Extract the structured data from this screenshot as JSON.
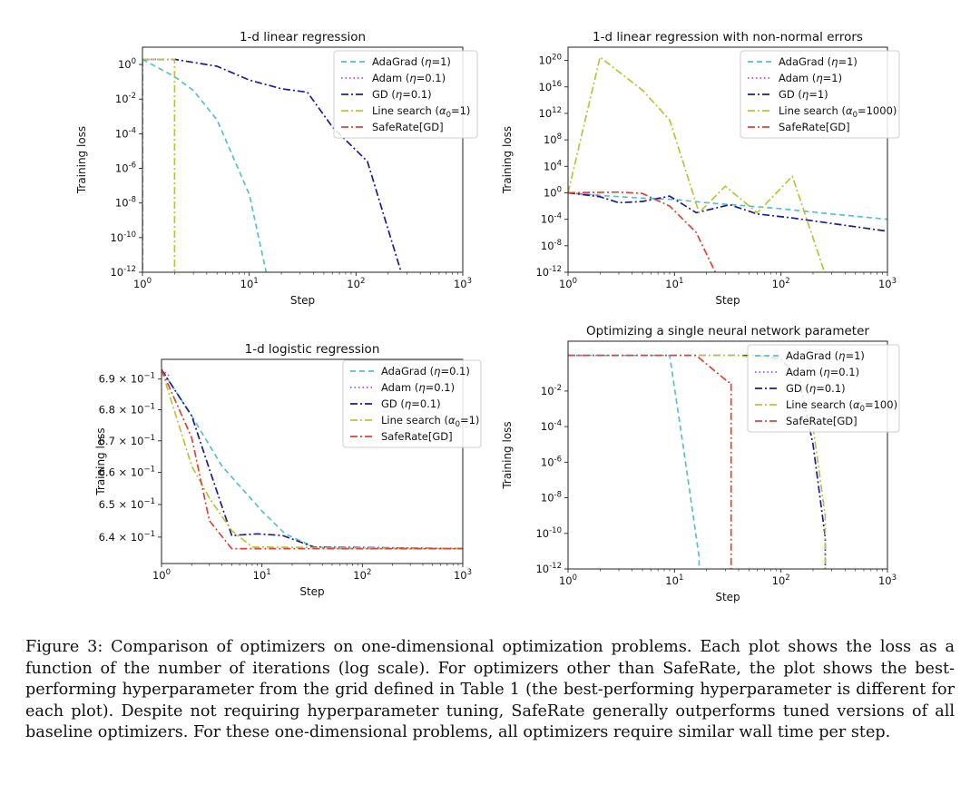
{
  "figure": {
    "caption": "Figure 3: Comparison of optimizers on one-dimensional optimization problems. Each plot shows the loss as a function of the number of iterations (log scale). For optimizers other than SafeRate, the plot shows the best-performing hyperparameter from the grid defined in Table 1 (the best-performing hyperparameter is different for each plot). Despite not requiring hyperparameter tuning, SafeRate generally outperforms tuned versions of all baseline optimizers. For these one-dimensional problems, all optimizers require similar wall time per step."
  },
  "colors": {
    "adagrad": "#5bbfc9",
    "adam": "#c845c8",
    "gd": "#1c1c8f",
    "line_search": "#b9c43c",
    "saferate": "#d9453a"
  },
  "chart_data": [
    {
      "type": "line",
      "title": "1-d linear regression",
      "xlabel": "Step",
      "ylabel": "Training loss",
      "xscale": "log",
      "yscale": "log",
      "xlim": [
        1,
        1000
      ],
      "ylim_exp": [
        -12,
        1
      ],
      "x_ticks": [
        {
          "label": "10",
          "exp": "0"
        },
        {
          "label": "10",
          "exp": "1"
        },
        {
          "label": "10",
          "exp": "2"
        },
        {
          "label": "10",
          "exp": "3"
        }
      ],
      "y_ticks": [
        {
          "label": "10",
          "exp": "0"
        },
        {
          "label": "10",
          "exp": "-2"
        },
        {
          "label": "10",
          "exp": "-4"
        },
        {
          "label": "10",
          "exp": "-6"
        },
        {
          "label": "10",
          "exp": "-8"
        },
        {
          "label": "10",
          "exp": "-10"
        },
        {
          "label": "10",
          "exp": "-12"
        }
      ],
      "legend_position": "top-right",
      "series": [
        {
          "key": "adagrad",
          "name": "AdaGrad (η=1)",
          "label_main": "AdaGrad (",
          "label_sym": "η",
          "label_rest": "=1)",
          "label_sub": "",
          "style": "dashed",
          "x": [
            1,
            2,
            3,
            5,
            10,
            15
          ],
          "y_exp": [
            0.3,
            -0.7,
            -1.5,
            -3.2,
            -7.5,
            -12.5
          ]
        },
        {
          "key": "adam",
          "name": "Adam (η=0.1)",
          "label_main": "Adam (",
          "label_sym": "η",
          "label_rest": "=0.1)",
          "label_sub": "",
          "style": "dotted",
          "x": [
            1,
            2
          ],
          "y_exp": [
            0.3,
            0.3
          ]
        },
        {
          "key": "gd",
          "name": "GD (η=0.1)",
          "label_main": "GD (",
          "label_sym": "η",
          "label_rest": "=0.1)",
          "label_sub": "",
          "style": "dashdot",
          "x": [
            1,
            2,
            5,
            10,
            20,
            35,
            60,
            128,
            250,
            280
          ],
          "y_exp": [
            0.3,
            0.3,
            -0.1,
            -0.9,
            -1.4,
            -1.6,
            -3.6,
            -5.6,
            -11.5,
            -12.5
          ]
        },
        {
          "key": "line_search",
          "name": "Line search (α0=1)",
          "label_main": "Line search (",
          "label_sym": "α",
          "label_rest": "=1)",
          "label_sub": "0",
          "style": "dashdot",
          "x": [
            1,
            2,
            2
          ],
          "y_exp": [
            0.3,
            0.3,
            -12.5
          ]
        },
        {
          "key": "saferate",
          "name": "SafeRate[GD]",
          "label_main": "SafeRate[GD]",
          "label_sym": "",
          "label_rest": "",
          "label_sub": "",
          "style": "dashdot",
          "x": [
            1,
            1
          ],
          "y_exp": [
            0.3,
            -12.5
          ]
        }
      ]
    },
    {
      "type": "line",
      "title": "1-d linear regression with non-normal errors",
      "xlabel": "Step",
      "ylabel": "Training loss",
      "xscale": "log",
      "yscale": "log",
      "xlim": [
        1,
        1000
      ],
      "ylim_exp": [
        -12,
        22
      ],
      "x_ticks": [
        {
          "label": "10",
          "exp": "0"
        },
        {
          "label": "10",
          "exp": "1"
        },
        {
          "label": "10",
          "exp": "2"
        },
        {
          "label": "10",
          "exp": "3"
        }
      ],
      "y_ticks": [
        {
          "label": "10",
          "exp": "20"
        },
        {
          "label": "10",
          "exp": "16"
        },
        {
          "label": "10",
          "exp": "12"
        },
        {
          "label": "10",
          "exp": "8"
        },
        {
          "label": "10",
          "exp": "4"
        },
        {
          "label": "10",
          "exp": "0"
        },
        {
          "label": "10",
          "exp": "-4"
        },
        {
          "label": "10",
          "exp": "-8"
        },
        {
          "label": "10",
          "exp": "-12"
        }
      ],
      "legend_position": "top-right",
      "series": [
        {
          "key": "adagrad",
          "name": "AdaGrad (η=1)",
          "label_main": "AdaGrad (",
          "label_sym": "η",
          "label_rest": "=1)",
          "label_sub": "",
          "style": "dashed",
          "x": [
            1,
            2,
            5,
            10,
            20,
            50,
            100,
            300,
            1000
          ],
          "y_exp": [
            0,
            -0.4,
            -0.8,
            -1,
            -1.5,
            -2,
            -2.4,
            -3.2,
            -4
          ]
        },
        {
          "key": "adam",
          "name": "Adam (η=1)",
          "label_main": "Adam (",
          "label_sym": "η",
          "label_rest": "=1)",
          "label_sub": "",
          "style": "dotted",
          "x": [
            1,
            2
          ],
          "y_exp": [
            0,
            -0.4
          ]
        },
        {
          "key": "gd",
          "name": "GD (η=1)",
          "label_main": "GD (",
          "label_sym": "η",
          "label_rest": "=1)",
          "label_sub": "",
          "style": "dashdot",
          "x": [
            1,
            2,
            3,
            5,
            9,
            16,
            33,
            60,
            128,
            1000
          ],
          "y_exp": [
            0,
            -0.6,
            -1.5,
            -1.3,
            -0.5,
            -3,
            -1.8,
            -3.2,
            -3.8,
            -5.8
          ]
        },
        {
          "key": "line_search",
          "name": "Line search (α0=1000)",
          "label_main": "Line search (",
          "label_sym": "α",
          "label_rest": "=1000)",
          "label_sub": "0",
          "style": "dashdot",
          "x": [
            1,
            2,
            5,
            9,
            17,
            30,
            60,
            128,
            256,
            300
          ],
          "y_exp": [
            0,
            20.5,
            15.5,
            11,
            -3,
            1,
            -3,
            2.5,
            -12,
            -12.5
          ]
        },
        {
          "key": "saferate",
          "name": "SafeRate[GD]",
          "label_main": "SafeRate[GD]",
          "label_sym": "",
          "label_rest": "",
          "label_sub": "",
          "style": "dashdot",
          "x": [
            1,
            3,
            5,
            9,
            16,
            25
          ],
          "y_exp": [
            0,
            0.1,
            -0.1,
            -2,
            -6,
            -12.5
          ]
        }
      ]
    },
    {
      "type": "line",
      "title": "1-d logistic regression",
      "xlabel": "Step",
      "ylabel": "Training loss",
      "xscale": "log",
      "yscale": "log",
      "xlim": [
        1,
        1000
      ],
      "ylim": [
        0.632,
        0.6965
      ],
      "x_ticks": [
        {
          "label": "10",
          "exp": "0"
        },
        {
          "label": "10",
          "exp": "1"
        },
        {
          "label": "10",
          "exp": "2"
        },
        {
          "label": "10",
          "exp": "3"
        }
      ],
      "y_ticks": [
        {
          "label": "6.9 × 10",
          "exp": "−1",
          "v": 0.69
        },
        {
          "label": "6.8 × 10",
          "exp": "−1",
          "v": 0.68
        },
        {
          "label": "6.7 × 10",
          "exp": "−1",
          "v": 0.67
        },
        {
          "label": "6.6 × 10",
          "exp": "−1",
          "v": 0.66
        },
        {
          "label": "6.5 × 10",
          "exp": "−1",
          "v": 0.65
        },
        {
          "label": "6.4 × 10",
          "exp": "−1",
          "v": 0.64
        }
      ],
      "legend_position": "top-right",
      "series": [
        {
          "key": "adagrad",
          "name": "AdaGrad (η=0.1)",
          "label_main": "AdaGrad (",
          "label_sym": "η",
          "label_rest": "=0.1)",
          "label_sub": "",
          "style": "dashed",
          "x": [
            1,
            2,
            4,
            10,
            17,
            33,
            60,
            1000
          ],
          "y": [
            0.6931,
            0.678,
            0.662,
            0.648,
            0.641,
            0.637,
            0.6365,
            0.6365
          ]
        },
        {
          "key": "adam",
          "name": "Adam (η=0.1)",
          "label_main": "Adam (",
          "label_sym": "η",
          "label_rest": "=0.1)",
          "label_sub": "",
          "style": "dotted",
          "x": [
            1,
            1.2
          ],
          "y": [
            0.6931,
            0.691
          ]
        },
        {
          "key": "gd",
          "name": "GD (η=0.1)",
          "label_main": "GD (",
          "label_sym": "η",
          "label_rest": "=0.1)",
          "label_sub": "",
          "style": "dashdot",
          "x": [
            1,
            2,
            3,
            5,
            9,
            16,
            33,
            1000
          ],
          "y": [
            0.6931,
            0.678,
            0.661,
            0.6405,
            0.641,
            0.6405,
            0.637,
            0.6365
          ]
        },
        {
          "key": "line_search",
          "name": "Line search (α0=1)",
          "label_main": "Line search (",
          "label_sym": "α",
          "label_rest": "=1)",
          "label_sub": "0",
          "style": "dashdot",
          "x": [
            1,
            2,
            3,
            5,
            8,
            1000
          ],
          "y": [
            0.6931,
            0.662,
            0.652,
            0.642,
            0.637,
            0.6365
          ]
        },
        {
          "key": "saferate",
          "name": "SafeRate[GD]",
          "label_main": "SafeRate[GD]",
          "label_sym": "",
          "label_rest": "",
          "label_sub": "",
          "style": "dashdot",
          "x": [
            1,
            2,
            3,
            5,
            1000
          ],
          "y": [
            0.6931,
            0.671,
            0.645,
            0.6365,
            0.6365
          ]
        }
      ]
    },
    {
      "type": "line",
      "title": "Optimizing a single neural network parameter",
      "xlabel": "Step",
      "ylabel": "Training loss",
      "xscale": "log",
      "yscale": "log",
      "xlim": [
        1,
        1000
      ],
      "ylim_exp": [
        -12,
        0.8
      ],
      "x_ticks": [
        {
          "label": "10",
          "exp": "0"
        },
        {
          "label": "10",
          "exp": "1"
        },
        {
          "label": "10",
          "exp": "2"
        },
        {
          "label": "10",
          "exp": "3"
        }
      ],
      "y_ticks": [
        {
          "label": "10",
          "exp": "-2"
        },
        {
          "label": "10",
          "exp": "-4"
        },
        {
          "label": "10",
          "exp": "-6"
        },
        {
          "label": "10",
          "exp": "-8"
        },
        {
          "label": "10",
          "exp": "-10"
        },
        {
          "label": "10",
          "exp": "-12"
        }
      ],
      "legend_position": "top-right",
      "series": [
        {
          "key": "adagrad",
          "name": "AdaGrad (η=1)",
          "label_main": "AdaGrad (",
          "label_sym": "η",
          "label_rest": "=1)",
          "label_sub": "",
          "style": "dashed",
          "x": [
            1,
            9,
            12,
            17,
            17
          ],
          "y_exp": [
            0,
            0,
            -5,
            -11.3,
            -12.5
          ]
        },
        {
          "key": "adam",
          "name": "Adam (η=0.1)",
          "label_main": "Adam (",
          "label_sym": "η",
          "label_rest": "=0.1)",
          "label_sub": "",
          "style": "dotted",
          "x": [
            1,
            2
          ],
          "y_exp": [
            0,
            0
          ]
        },
        {
          "key": "gd",
          "name": "GD (η=0.1)",
          "label_main": "GD (",
          "label_sym": "η",
          "label_rest": "=0.1)",
          "label_sub": "",
          "style": "dashdot",
          "x": [
            1,
            60,
            100,
            150,
            200,
            260,
            260
          ],
          "y_exp": [
            0,
            0,
            -0.2,
            -1.5,
            -5,
            -10.2,
            -12.5
          ]
        },
        {
          "key": "line_search",
          "name": "Line search (α0=100)",
          "label_main": "Line search (",
          "label_sym": "α",
          "label_rest": "=100)",
          "label_sub": "0",
          "style": "dashdot",
          "x": [
            1,
            40,
            100,
            180,
            260,
            260
          ],
          "y_exp": [
            0,
            0,
            -0.3,
            -2,
            -9,
            -12.5
          ]
        },
        {
          "key": "saferate",
          "name": "SafeRate[GD]",
          "label_main": "SafeRate[GD]",
          "label_sym": "",
          "label_rest": "",
          "label_sub": "",
          "style": "dashdot",
          "x": [
            1,
            16,
            32,
            32,
            34,
            34
          ],
          "y_exp": [
            0,
            0,
            -1.5,
            -1.5,
            -1.5,
            -12.5
          ]
        }
      ]
    }
  ]
}
